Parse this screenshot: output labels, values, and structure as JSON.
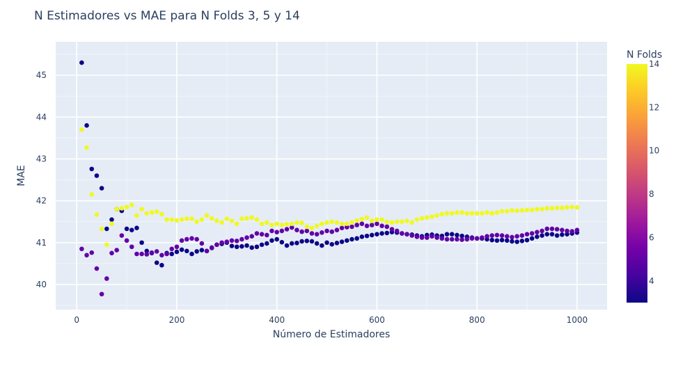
{
  "chart_data": {
    "type": "scatter",
    "title": "N Estimadores vs MAE para N Folds 3, 5 y 14",
    "xlabel": "Número de Estimadores",
    "ylabel": "MAE",
    "xlim": [
      -42,
      1060
    ],
    "ylim": [
      39.4,
      45.8
    ],
    "x_ticks": [
      0,
      200,
      400,
      600,
      800,
      1000
    ],
    "y_ticks": [
      40,
      41,
      42,
      43,
      44,
      45
    ],
    "grid": true,
    "colorbar": {
      "title": "N Folds",
      "range": [
        3,
        14
      ],
      "ticks": [
        4,
        6,
        8,
        10,
        12,
        14
      ],
      "colorscale": [
        "#0d0887",
        "#46039f",
        "#7201a8",
        "#9c179e",
        "#bd3786",
        "#d8576b",
        "#ed7953",
        "#fb9f3a",
        "#fdca26",
        "#f0f921"
      ]
    },
    "series": [
      {
        "folds": 3,
        "x": [
          10,
          20,
          30,
          40,
          50,
          60,
          70,
          80,
          90,
          100,
          110,
          120,
          130,
          140,
          150,
          160,
          170,
          180,
          190,
          200,
          210,
          220,
          230,
          240,
          250,
          260,
          270,
          280,
          290,
          300,
          310,
          320,
          330,
          340,
          350,
          360,
          370,
          380,
          390,
          400,
          410,
          420,
          430,
          440,
          450,
          460,
          470,
          480,
          490,
          500,
          510,
          520,
          530,
          540,
          550,
          560,
          570,
          580,
          590,
          600,
          610,
          620,
          630,
          640,
          650,
          660,
          670,
          680,
          690,
          700,
          710,
          720,
          730,
          740,
          750,
          760,
          770,
          780,
          790,
          800,
          810,
          820,
          830,
          840,
          850,
          860,
          870,
          880,
          890,
          900,
          910,
          920,
          930,
          940,
          950,
          960,
          970,
          980,
          990,
          1000
        ],
        "y": [
          45.3,
          43.8,
          42.76,
          42.6,
          42.3,
          41.33,
          41.55,
          41.8,
          41.76,
          41.33,
          41.3,
          41.35,
          41.0,
          40.8,
          40.75,
          40.52,
          40.46,
          40.75,
          40.73,
          40.78,
          40.83,
          40.8,
          40.73,
          40.79,
          40.82,
          40.8,
          40.88,
          40.95,
          40.97,
          41.0,
          40.92,
          40.9,
          40.91,
          40.93,
          40.88,
          40.9,
          40.95,
          40.98,
          41.05,
          41.08,
          41.01,
          40.93,
          40.98,
          40.99,
          41.03,
          41.04,
          41.03,
          40.98,
          40.93,
          41.0,
          40.96,
          40.99,
          41.02,
          41.05,
          41.08,
          41.1,
          41.14,
          41.16,
          41.18,
          41.2,
          41.22,
          41.23,
          41.25,
          41.24,
          41.22,
          41.2,
          41.19,
          41.17,
          41.15,
          41.18,
          41.19,
          41.17,
          41.16,
          41.2,
          41.2,
          41.18,
          41.16,
          41.14,
          41.12,
          41.1,
          41.1,
          41.08,
          41.06,
          41.05,
          41.06,
          41.05,
          41.03,
          41.02,
          41.04,
          41.06,
          41.1,
          41.14,
          41.17,
          41.2,
          41.2,
          41.17,
          41.19,
          41.2,
          41.22,
          41.24
        ]
      },
      {
        "folds": 5,
        "x": [
          10,
          20,
          30,
          40,
          50,
          60,
          70,
          80,
          90,
          100,
          110,
          120,
          130,
          140,
          150,
          160,
          170,
          180,
          190,
          200,
          210,
          220,
          230,
          240,
          250,
          260,
          270,
          280,
          290,
          300,
          310,
          320,
          330,
          340,
          350,
          360,
          370,
          380,
          390,
          400,
          410,
          420,
          430,
          440,
          450,
          460,
          470,
          480,
          490,
          500,
          510,
          520,
          530,
          540,
          550,
          560,
          570,
          580,
          590,
          600,
          610,
          620,
          630,
          640,
          650,
          660,
          670,
          680,
          690,
          700,
          710,
          720,
          730,
          740,
          750,
          760,
          770,
          780,
          790,
          800,
          810,
          820,
          830,
          840,
          850,
          860,
          870,
          880,
          890,
          900,
          910,
          920,
          930,
          940,
          950,
          960,
          970,
          980,
          990,
          1000
        ],
        "y": [
          40.85,
          40.7,
          40.76,
          40.38,
          39.77,
          40.14,
          40.75,
          40.82,
          41.17,
          41.05,
          40.9,
          40.73,
          40.73,
          40.72,
          40.76,
          40.79,
          40.7,
          40.73,
          40.85,
          40.9,
          41.05,
          41.08,
          41.1,
          41.08,
          40.98,
          40.8,
          40.87,
          40.95,
          41.0,
          41.02,
          41.05,
          41.04,
          41.08,
          41.12,
          41.15,
          41.22,
          41.2,
          41.18,
          41.28,
          41.25,
          41.28,
          41.32,
          41.36,
          41.3,
          41.26,
          41.28,
          41.22,
          41.2,
          41.24,
          41.28,
          41.26,
          41.3,
          41.35,
          41.37,
          41.38,
          41.42,
          41.45,
          41.4,
          41.42,
          41.45,
          41.4,
          41.38,
          41.32,
          41.28,
          41.22,
          41.2,
          41.17,
          41.14,
          41.12,
          41.12,
          41.15,
          41.12,
          41.1,
          41.08,
          41.08,
          41.08,
          41.07,
          41.08,
          41.1,
          41.1,
          41.12,
          41.15,
          41.17,
          41.18,
          41.17,
          41.15,
          41.13,
          41.15,
          41.17,
          41.2,
          41.22,
          41.25,
          41.28,
          41.33,
          41.33,
          41.32,
          41.3,
          41.28,
          41.27,
          41.3
        ]
      },
      {
        "folds": 14,
        "x": [
          10,
          20,
          30,
          40,
          50,
          60,
          70,
          80,
          90,
          100,
          110,
          120,
          130,
          140,
          150,
          160,
          170,
          180,
          190,
          200,
          210,
          220,
          230,
          240,
          250,
          260,
          270,
          280,
          290,
          300,
          310,
          320,
          330,
          340,
          350,
          360,
          370,
          380,
          390,
          400,
          410,
          420,
          430,
          440,
          450,
          460,
          470,
          480,
          490,
          500,
          510,
          520,
          530,
          540,
          550,
          560,
          570,
          580,
          590,
          600,
          610,
          620,
          630,
          640,
          650,
          660,
          670,
          680,
          690,
          700,
          710,
          720,
          730,
          740,
          750,
          760,
          770,
          780,
          790,
          800,
          810,
          820,
          830,
          840,
          850,
          860,
          870,
          880,
          890,
          900,
          910,
          920,
          930,
          940,
          950,
          960,
          970,
          980,
          990,
          1000
        ],
        "y": [
          43.7,
          43.27,
          42.15,
          41.67,
          41.33,
          40.95,
          41.45,
          41.8,
          41.82,
          41.85,
          41.9,
          41.65,
          41.8,
          41.7,
          41.72,
          41.74,
          41.68,
          41.55,
          41.55,
          41.53,
          41.55,
          41.57,
          41.57,
          41.5,
          41.55,
          41.65,
          41.58,
          41.52,
          41.48,
          41.57,
          41.52,
          41.45,
          41.57,
          41.58,
          41.6,
          41.55,
          41.45,
          41.48,
          41.42,
          41.45,
          41.42,
          41.44,
          41.45,
          41.48,
          41.47,
          41.38,
          41.35,
          41.4,
          41.45,
          41.48,
          41.5,
          41.48,
          41.45,
          41.45,
          41.48,
          41.53,
          41.56,
          41.6,
          41.52,
          41.55,
          41.55,
          41.5,
          41.48,
          41.5,
          41.5,
          41.52,
          41.48,
          41.55,
          41.58,
          41.6,
          41.62,
          41.65,
          41.68,
          41.7,
          41.7,
          41.72,
          41.72,
          41.7,
          41.7,
          41.7,
          41.7,
          41.72,
          41.7,
          41.72,
          41.75,
          41.75,
          41.77,
          41.76,
          41.77,
          41.78,
          41.78,
          41.8,
          41.8,
          41.82,
          41.82,
          41.83,
          41.83,
          41.84,
          41.85,
          41.84
        ]
      }
    ]
  }
}
